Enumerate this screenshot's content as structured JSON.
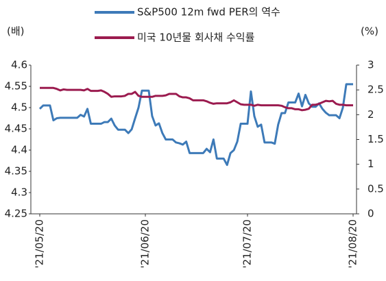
{
  "chart_data": {
    "type": "line",
    "categories": [
      "'21/05/20",
      null,
      null,
      null,
      null,
      null,
      null,
      null,
      null,
      null,
      null,
      null,
      null,
      null,
      null,
      null,
      null,
      null,
      null,
      null,
      null,
      null,
      null,
      null,
      null,
      null,
      null,
      null,
      null,
      null,
      null,
      "'21/06/20",
      null,
      null,
      null,
      null,
      null,
      null,
      null,
      null,
      null,
      null,
      null,
      null,
      null,
      null,
      null,
      null,
      null,
      null,
      null,
      null,
      null,
      null,
      null,
      null,
      null,
      null,
      null,
      null,
      null,
      "'21/07/20",
      null,
      null,
      null,
      null,
      null,
      null,
      null,
      null,
      null,
      null,
      null,
      null,
      null,
      null,
      null,
      null,
      null,
      null,
      null,
      null,
      null,
      null,
      null,
      null,
      null,
      null,
      null,
      null,
      null,
      null,
      "'21/08/20"
    ],
    "y_label": "(배)",
    "y2_label": "(%)",
    "ylim": [
      4.25,
      4.6
    ],
    "yticks": [
      4.25,
      4.3,
      4.35,
      4.4,
      4.45,
      4.5,
      4.55,
      4.6
    ],
    "y2lim": [
      0,
      3
    ],
    "y2ticks": [
      0,
      0.5,
      1,
      1.5,
      2,
      2.5,
      3
    ],
    "series": [
      {
        "name": "S&P500 12m fwd PER의 역수",
        "color": "#3d7ab8",
        "values": [
          4.497,
          4.505,
          4.505,
          4.505,
          4.47,
          4.475,
          4.476,
          4.476,
          4.476,
          4.476,
          4.476,
          4.476,
          4.483,
          4.479,
          4.497,
          4.462,
          4.462,
          4.462,
          4.462,
          4.466,
          4.466,
          4.474,
          4.458,
          4.448,
          4.448,
          4.448,
          4.44,
          4.449,
          4.475,
          4.5,
          4.54,
          4.54,
          4.54,
          4.48,
          4.458,
          4.463,
          4.44,
          4.425,
          4.425,
          4.425,
          4.418,
          4.416,
          4.413,
          4.42,
          4.393,
          4.393,
          4.393,
          4.393,
          4.393,
          4.403,
          4.395,
          4.425,
          4.38,
          4.38,
          4.38,
          4.365,
          4.393,
          4.4,
          4.42,
          4.462,
          4.462,
          4.462,
          4.538,
          4.48,
          4.455,
          4.46,
          4.418,
          4.418,
          4.418,
          4.415,
          4.46,
          4.487,
          4.487,
          4.512,
          4.512,
          4.512,
          4.533,
          4.503,
          4.53,
          4.51,
          4.502,
          4.502,
          4.51,
          4.497,
          4.488,
          4.482,
          4.482,
          4.482,
          4.475,
          4.5,
          4.555,
          4.555,
          4.555
        ]
      },
      {
        "name": "미국 10년물 회사채 수익률",
        "color": "#9b1b4f",
        "axis": "y2",
        "values": [
          2.54,
          2.54,
          2.54,
          2.54,
          2.54,
          2.52,
          2.49,
          2.51,
          2.5,
          2.5,
          2.5,
          2.5,
          2.5,
          2.49,
          2.52,
          2.48,
          2.48,
          2.48,
          2.49,
          2.46,
          2.42,
          2.36,
          2.37,
          2.37,
          2.37,
          2.38,
          2.42,
          2.42,
          2.46,
          2.38,
          2.36,
          2.36,
          2.36,
          2.36,
          2.38,
          2.38,
          2.38,
          2.39,
          2.42,
          2.42,
          2.42,
          2.37,
          2.35,
          2.35,
          2.33,
          2.29,
          2.29,
          2.29,
          2.29,
          2.27,
          2.24,
          2.22,
          2.23,
          2.23,
          2.23,
          2.23,
          2.25,
          2.29,
          2.25,
          2.21,
          2.2,
          2.2,
          2.2,
          2.18,
          2.2,
          2.19,
          2.19,
          2.19,
          2.19,
          2.19,
          2.19,
          2.18,
          2.15,
          2.13,
          2.13,
          2.11,
          2.11,
          2.09,
          2.1,
          2.12,
          2.2,
          2.2,
          2.22,
          2.25,
          2.28,
          2.27,
          2.28,
          2.22,
          2.2,
          2.2,
          2.19,
          2.19,
          2.19
        ]
      }
    ],
    "grid": false
  }
}
